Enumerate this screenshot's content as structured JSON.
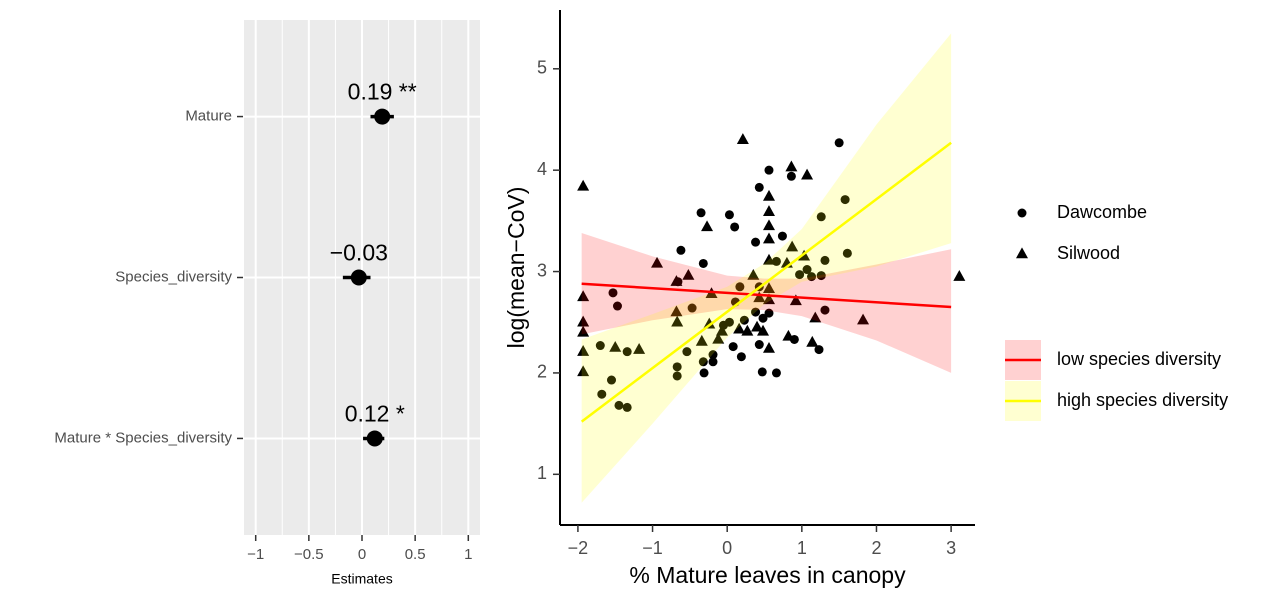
{
  "chart_data": [
    {
      "type": "forest",
      "xlabel": "Estimates",
      "categories": [
        "Mature",
        "Species_diversity",
        "Mature * Species_diversity"
      ],
      "values": [
        0.19,
        -0.03,
        0.12
      ],
      "value_labels": [
        "0.19 **",
        "−0.03",
        "0.12 *"
      ],
      "ci_low": [
        0.08,
        -0.18,
        0.01
      ],
      "ci_high": [
        0.3,
        0.08,
        0.21
      ],
      "xlim": [
        -1.11,
        1.11
      ],
      "xticks": [
        {
          "value": -1,
          "label": "−1"
        },
        {
          "value": -0.5,
          "label": "−0.5"
        },
        0,
        0.5,
        1
      ],
      "color": "#000000",
      "grid": true,
      "background": "#ebebeb"
    },
    {
      "type": "scatter",
      "xlabel": "% Mature leaves in canopy",
      "ylabel": "log(mean−CoV)",
      "xlim": [
        -2.24,
        3.32
      ],
      "ylim": [
        0.5,
        5.58
      ],
      "xticks": [
        {
          "value": -2,
          "label": "−2"
        },
        {
          "value": -1,
          "label": "−1"
        },
        0,
        1,
        2,
        3
      ],
      "yticks": [
        1,
        2,
        3,
        4,
        5
      ],
      "series": [
        {
          "name": "Dawcombe",
          "marker": "circle",
          "color": "#000000",
          "x": [
            1.5,
            0.56,
            0.86,
            0.43,
            1.26,
            -0.35,
            0.03,
            0.1,
            1.58,
            0.38,
            0.74,
            1.61,
            -0.62,
            -0.32,
            0.66,
            1.07,
            0.97,
            1.13,
            1.26,
            1.31,
            0.17,
            0.43,
            -1.53,
            -1.47,
            0.11,
            0.38,
            0.56,
            0.23,
            0.48,
            0.03,
            -0.47,
            1.31,
            -1.7,
            -0.05,
            0.43,
            0.08,
            0.9,
            1.23,
            -0.54,
            -0.19,
            -0.32,
            0.19,
            -0.67,
            -0.67,
            -0.31,
            -0.19,
            0.47,
            0.66,
            -1.55,
            -1.68,
            -1.45,
            -1.34,
            -1.34,
            -0.66
          ],
          "values": [
            4.27,
            4.0,
            3.94,
            3.83,
            3.54,
            3.58,
            3.56,
            3.44,
            3.71,
            3.29,
            3.35,
            3.18,
            3.21,
            3.08,
            3.1,
            3.02,
            2.97,
            2.95,
            2.96,
            3.11,
            2.85,
            2.85,
            2.79,
            2.66,
            2.7,
            2.6,
            2.59,
            2.52,
            2.54,
            2.5,
            2.64,
            2.62,
            2.27,
            2.47,
            2.28,
            2.26,
            2.33,
            2.23,
            2.21,
            2.18,
            2.11,
            2.16,
            2.06,
            1.97,
            2.0,
            2.11,
            2.01,
            2.0,
            1.93,
            1.79,
            1.68,
            1.66,
            2.21,
            2.9
          ]
        },
        {
          "name": "Silwood",
          "marker": "triangle",
          "color": "#000000",
          "x": [
            -1.93,
            0.21,
            0.86,
            1.07,
            0.56,
            0.56,
            -0.27,
            0.56,
            0.87,
            -0.94,
            0.56,
            0.8,
            1.03,
            3.11,
            -0.52,
            -0.68,
            0.56,
            0.56,
            -1.93,
            0.35,
            -0.21,
            0.92,
            -0.68,
            0.56,
            1.82,
            1.18,
            0.16,
            -1.93,
            -1.93,
            -1.5,
            -1.18,
            -0.24,
            0.4,
            0.56,
            1.14,
            -1.93,
            -1.93,
            -0.67,
            -0.07,
            -0.12,
            0.27,
            0.48,
            -0.34,
            0.43,
            0.82
          ],
          "values": [
            3.84,
            4.3,
            4.03,
            3.95,
            3.74,
            3.59,
            3.44,
            3.45,
            3.24,
            3.08,
            3.32,
            3.08,
            3.15,
            2.95,
            2.96,
            2.9,
            3.11,
            2.83,
            2.75,
            2.96,
            2.78,
            2.71,
            2.6,
            2.72,
            2.52,
            2.54,
            2.43,
            2.5,
            2.4,
            2.25,
            2.23,
            2.48,
            2.45,
            2.24,
            2.3,
            2.21,
            2.01,
            2.5,
            2.41,
            2.33,
            2.41,
            2.41,
            2.31,
            2.74,
            2.36
          ]
        }
      ],
      "fits": [
        {
          "name": "low species diversity",
          "color": "#ff0000",
          "x": [
            -1.95,
            3.0
          ],
          "values": [
            2.88,
            2.65
          ],
          "band_x": [
            -1.95,
            -1,
            0,
            0.5,
            1,
            2,
            3
          ],
          "band_low": [
            2.38,
            2.52,
            2.63,
            2.62,
            2.56,
            2.32,
            2.0
          ],
          "band_high": [
            3.38,
            3.15,
            2.96,
            2.93,
            2.93,
            3.07,
            3.22
          ]
        },
        {
          "name": "high species diversity",
          "color": "#ffff00",
          "x": [
            -1.95,
            3.0
          ],
          "values": [
            1.52,
            4.27
          ],
          "band_x": [
            -1.95,
            -1,
            0,
            0.5,
            1,
            2,
            3
          ],
          "band_low": [
            0.72,
            1.5,
            2.35,
            2.68,
            2.9,
            3.05,
            3.28
          ],
          "band_high": [
            2.33,
            2.58,
            2.85,
            3.08,
            3.42,
            4.45,
            5.35
          ]
        }
      ]
    }
  ]
}
